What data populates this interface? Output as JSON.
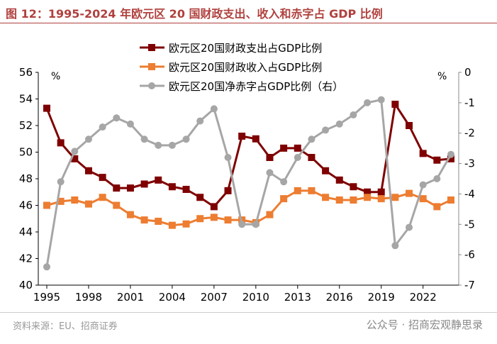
{
  "title": "图 12：1995-2024 年欧元区 20 国财政支出、收入和赤字占 GDP 比例",
  "source": "资料来源：EU、招商证券",
  "watermark": "公众号 · 招商宏观静思录",
  "chart_data": {
    "type": "line",
    "x": [
      1995,
      1996,
      1997,
      1998,
      1999,
      2000,
      2001,
      2002,
      2003,
      2004,
      2005,
      2006,
      2007,
      2008,
      2009,
      2010,
      2011,
      2012,
      2013,
      2014,
      2015,
      2016,
      2017,
      2018,
      2019,
      2020,
      2021,
      2022,
      2023,
      2024
    ],
    "x_ticks": [
      "1995",
      "1998",
      "2001",
      "2004",
      "2007",
      "2010",
      "2013",
      "2016",
      "2019",
      "2022"
    ],
    "left_unit": "%",
    "right_unit": "%",
    "ylim_left": [
      40,
      56
    ],
    "yticks_left": [
      "40",
      "42",
      "44",
      "46",
      "48",
      "50",
      "52",
      "54",
      "56"
    ],
    "ylim_right": [
      -7,
      0
    ],
    "yticks_right": [
      "-7",
      "-6",
      "-5",
      "-4",
      "-3",
      "-2",
      "-1",
      "0"
    ],
    "legend_position": "top",
    "grid": false,
    "series": [
      {
        "name": "欧元区20国财政支出占GDP比例",
        "axis": "left",
        "color": "#7f0000",
        "marker": "square",
        "values": [
          53.3,
          50.7,
          49.5,
          48.6,
          48.1,
          47.3,
          47.3,
          47.6,
          47.9,
          47.4,
          47.2,
          46.6,
          45.9,
          47.1,
          51.2,
          51.0,
          49.6,
          50.3,
          50.3,
          49.6,
          48.6,
          47.9,
          47.4,
          47.0,
          47.0,
          53.6,
          52.0,
          49.9,
          49.4,
          49.5
        ]
      },
      {
        "name": "欧元区20国财政收入占GDP比例",
        "axis": "left",
        "color": "#ed7d31",
        "marker": "square",
        "values": [
          46.0,
          46.3,
          46.4,
          46.1,
          46.6,
          46.0,
          45.3,
          44.9,
          44.8,
          44.5,
          44.6,
          45.0,
          45.1,
          44.9,
          44.9,
          44.7,
          45.3,
          46.5,
          47.1,
          47.1,
          46.6,
          46.4,
          46.4,
          46.6,
          46.5,
          46.6,
          46.9,
          46.5,
          45.9,
          46.4
        ]
      },
      {
        "name": "欧元区20国净赤字占GDP比例（右）",
        "axis": "right",
        "color": "#a6a6a6",
        "marker": "circle",
        "values": [
          -6.4,
          -3.6,
          -2.6,
          -2.2,
          -1.8,
          -1.5,
          -1.7,
          -2.2,
          -2.4,
          -2.4,
          -2.2,
          -1.6,
          -1.2,
          -2.8,
          -5.0,
          -5.0,
          -3.3,
          -3.6,
          -2.8,
          -2.2,
          -1.9,
          -1.7,
          -1.4,
          -1.0,
          -0.9,
          -5.7,
          -5.1,
          -3.7,
          -3.5,
          -2.7
        ]
      }
    ]
  }
}
